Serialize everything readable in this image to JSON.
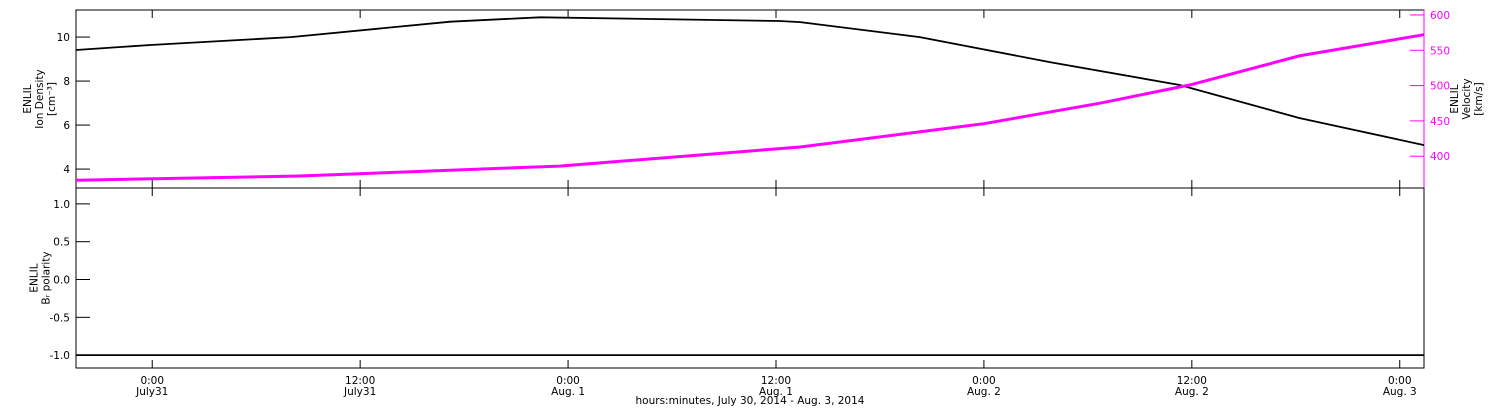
{
  "chart_data": [
    {
      "type": "line",
      "ylabel": [
        "ENLIL",
        "Ion Density",
        "[cm⁻³]"
      ],
      "y2label": [
        "ENLIL",
        "Velocity",
        "[km/s]"
      ],
      "xlim": [
        19.6,
        97.4
      ],
      "xticks": [
        24,
        36,
        48,
        60,
        72,
        84,
        96
      ],
      "ylim": [
        3.14,
        11.23
      ],
      "yticks": [
        4,
        6,
        8,
        10
      ],
      "y2lim": [
        355,
        607
      ],
      "y2ticks": [
        400,
        450,
        500,
        550,
        600
      ],
      "y2color": "#ff00ff",
      "series": [
        {
          "color": "#000000",
          "x": [
            19.6,
            23.9,
            32.0,
            41.2,
            46.4,
            60.2,
            61.4,
            68.3,
            75.8,
            83.3,
            90.2,
            97.4
          ],
          "values": [
            9.41,
            9.64,
            10.0,
            10.7,
            10.9,
            10.73,
            10.68,
            10.0,
            8.86,
            7.82,
            6.32,
            5.09
          ]
        },
        {
          "color": "#ff00ff",
          "axis": "y2",
          "x": [
            19.6,
            32.5,
            47.5,
            61.4,
            72.0,
            78.7,
            83.9,
            90.2,
            97.4
          ],
          "values": [
            366,
            372,
            386,
            413,
            446,
            475,
            501,
            542,
            572
          ]
        }
      ]
    },
    {
      "type": "line",
      "ylabel": [
        "ENLIL",
        "Bᵣ polarity"
      ],
      "xlabel": "hours:minutes, July 30, 2014 - Aug.  3, 2014",
      "xlim": [
        19.6,
        97.4
      ],
      "xticks": [
        {
          "value": 24,
          "label": "0:00",
          "date": "July31"
        },
        {
          "value": 36,
          "label": "12:00",
          "date": "July31"
        },
        {
          "value": 48,
          "label": "0:00",
          "date": "Aug. 1"
        },
        {
          "value": 60,
          "label": "12:00",
          "date": "Aug. 1"
        },
        {
          "value": 72,
          "label": "0:00",
          "date": "Aug. 2"
        },
        {
          "value": 84,
          "label": "12:00",
          "date": "Aug. 2"
        },
        {
          "value": 96,
          "label": "0:00",
          "date": "Aug. 3"
        }
      ],
      "ylim": [
        -1.17,
        1.21
      ],
      "yticks": [
        {
          "value": -1,
          "label": "-1.0"
        },
        -0.5,
        {
          "value": 0,
          "label": "0.0"
        },
        0.5,
        {
          "value": 1,
          "label": "1.0"
        }
      ],
      "series": [
        {
          "color": "#000000",
          "x": [
            19.6,
            97.4
          ],
          "values": [
            -1,
            -1
          ]
        }
      ]
    }
  ]
}
